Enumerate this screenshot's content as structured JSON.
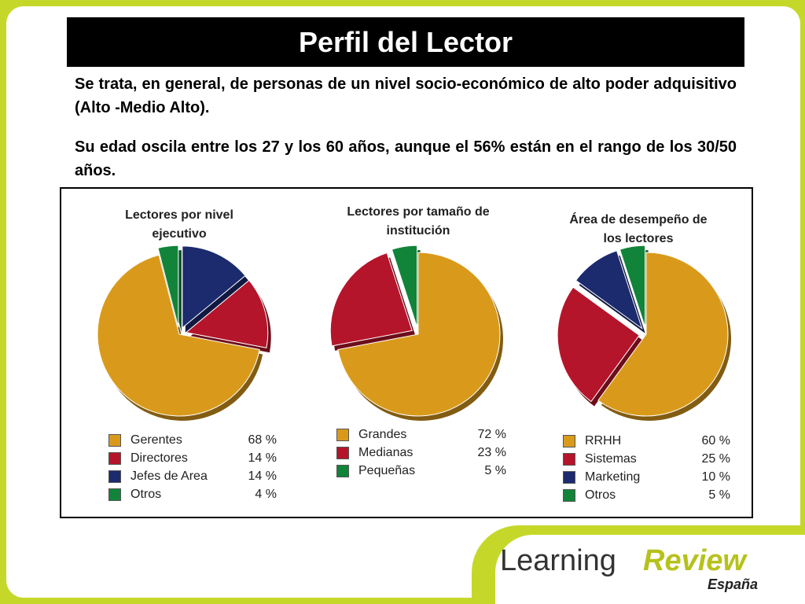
{
  "slide": {
    "title": "Perfil del Lector",
    "paragraphs": [
      "Se trata, en general, de personas de un nivel socio-económico de alto poder adquisitivo (Alto -Medio Alto).",
      "Su edad oscila entre los 27 y los 60 años, aunque el 56% están en el rango de los 30/50 años."
    ]
  },
  "chart_data": [
    {
      "type": "pie",
      "title": "Lectores por nivel ejecutivo",
      "categories": [
        "Gerentes",
        "Directores",
        "Jefes de Area",
        "Otros"
      ],
      "values": [
        68,
        14,
        14,
        4
      ],
      "value_labels": [
        "68 %",
        "14 %",
        "14 %",
        "4 %"
      ],
      "colors": [
        "#d99a1c",
        "#b5152b",
        "#1c2a6e",
        "#11843a"
      ]
    },
    {
      "type": "pie",
      "title": "Lectores por tamaño de institución",
      "categories": [
        "Grandes",
        "Medianas",
        "Pequeñas"
      ],
      "values": [
        72,
        23,
        5
      ],
      "value_labels": [
        "72 %",
        "23 %",
        "5 %"
      ],
      "colors": [
        "#d99a1c",
        "#b5152b",
        "#11843a"
      ]
    },
    {
      "type": "pie",
      "title": "Área de desempeño de los lectores",
      "categories": [
        "RRHH",
        "Sistemas",
        "Marketing",
        "Otros"
      ],
      "values": [
        60,
        25,
        10,
        5
      ],
      "value_labels": [
        "60 %",
        "25 %",
        "10 %",
        "5 %"
      ],
      "colors": [
        "#d99a1c",
        "#b5152b",
        "#1c2a6e",
        "#11843a"
      ]
    }
  ],
  "logo": {
    "name": "Learning",
    "accent": "Review",
    "region": "España"
  }
}
